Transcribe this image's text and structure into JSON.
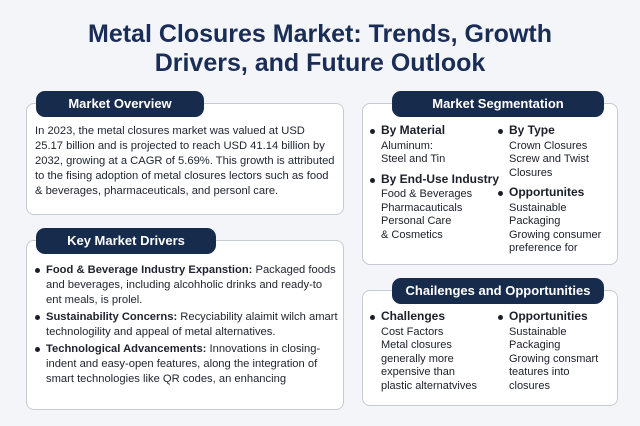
{
  "title": {
    "line1": "Metal Closures Market: Trends, Growth",
    "line2": "Drivers, and Future Outlook"
  },
  "overview": {
    "heading": "Market Overview",
    "text": "In 2023, the metal closures market was valued at USD 25.17 billion and is projected to reach USD 41.14 billion by 2032, growing at a CAGR of 5.69%. This growth is attributed to the fising adoption of metal closures lectors such as food & beverages, pharmaceuticals, and personl care."
  },
  "drivers": {
    "heading": "Key Market Drivers",
    "items": [
      {
        "label": "Food & Beverage Industry Expanstion:",
        "text": " Packaged foods and beverages, including alcohholic drinks and ready-to ent meals, is prolel."
      },
      {
        "label": "Sustainability Concerns:",
        "text": " Recyciability alaimit wilch amart technologility and appeal of metal alternatives."
      },
      {
        "label": "Technological Advancements:",
        "text": " Innovations in closing-indent and easy-open features, along the integration of smart technologies like QR codes, an enhancing"
      }
    ]
  },
  "segmentation": {
    "heading": "Market Segmentation",
    "left": [
      {
        "head": "By Material",
        "items": [
          "Aluminum:",
          "Steel and Tin"
        ]
      },
      {
        "head": "By End-Use Industry",
        "items": [
          "Food & Beverages",
          "Pharmacauticals",
          "Personal Care",
          "& Cosmetics"
        ]
      }
    ],
    "right": [
      {
        "head": "By Type",
        "items": [
          "Crown Closures",
          "Screw and Twist",
          "Closures"
        ]
      },
      {
        "head": "Opportunites",
        "items": [
          "Sustainable",
          "Packaging",
          "Growing consumer",
          "preference for"
        ]
      }
    ]
  },
  "challenges": {
    "heading": "Chailenges and Opportunities",
    "left": {
      "head": "Challenges",
      "items": [
        "Cost Factors",
        "Metal closures",
        "generally more",
        "expensive than",
        "plastic alternatvives"
      ]
    },
    "right": {
      "head": "Opportunities",
      "items": [
        "Sustainable",
        "Packaging",
        "Growing consmart",
        "teatures into",
        "closures"
      ]
    }
  }
}
